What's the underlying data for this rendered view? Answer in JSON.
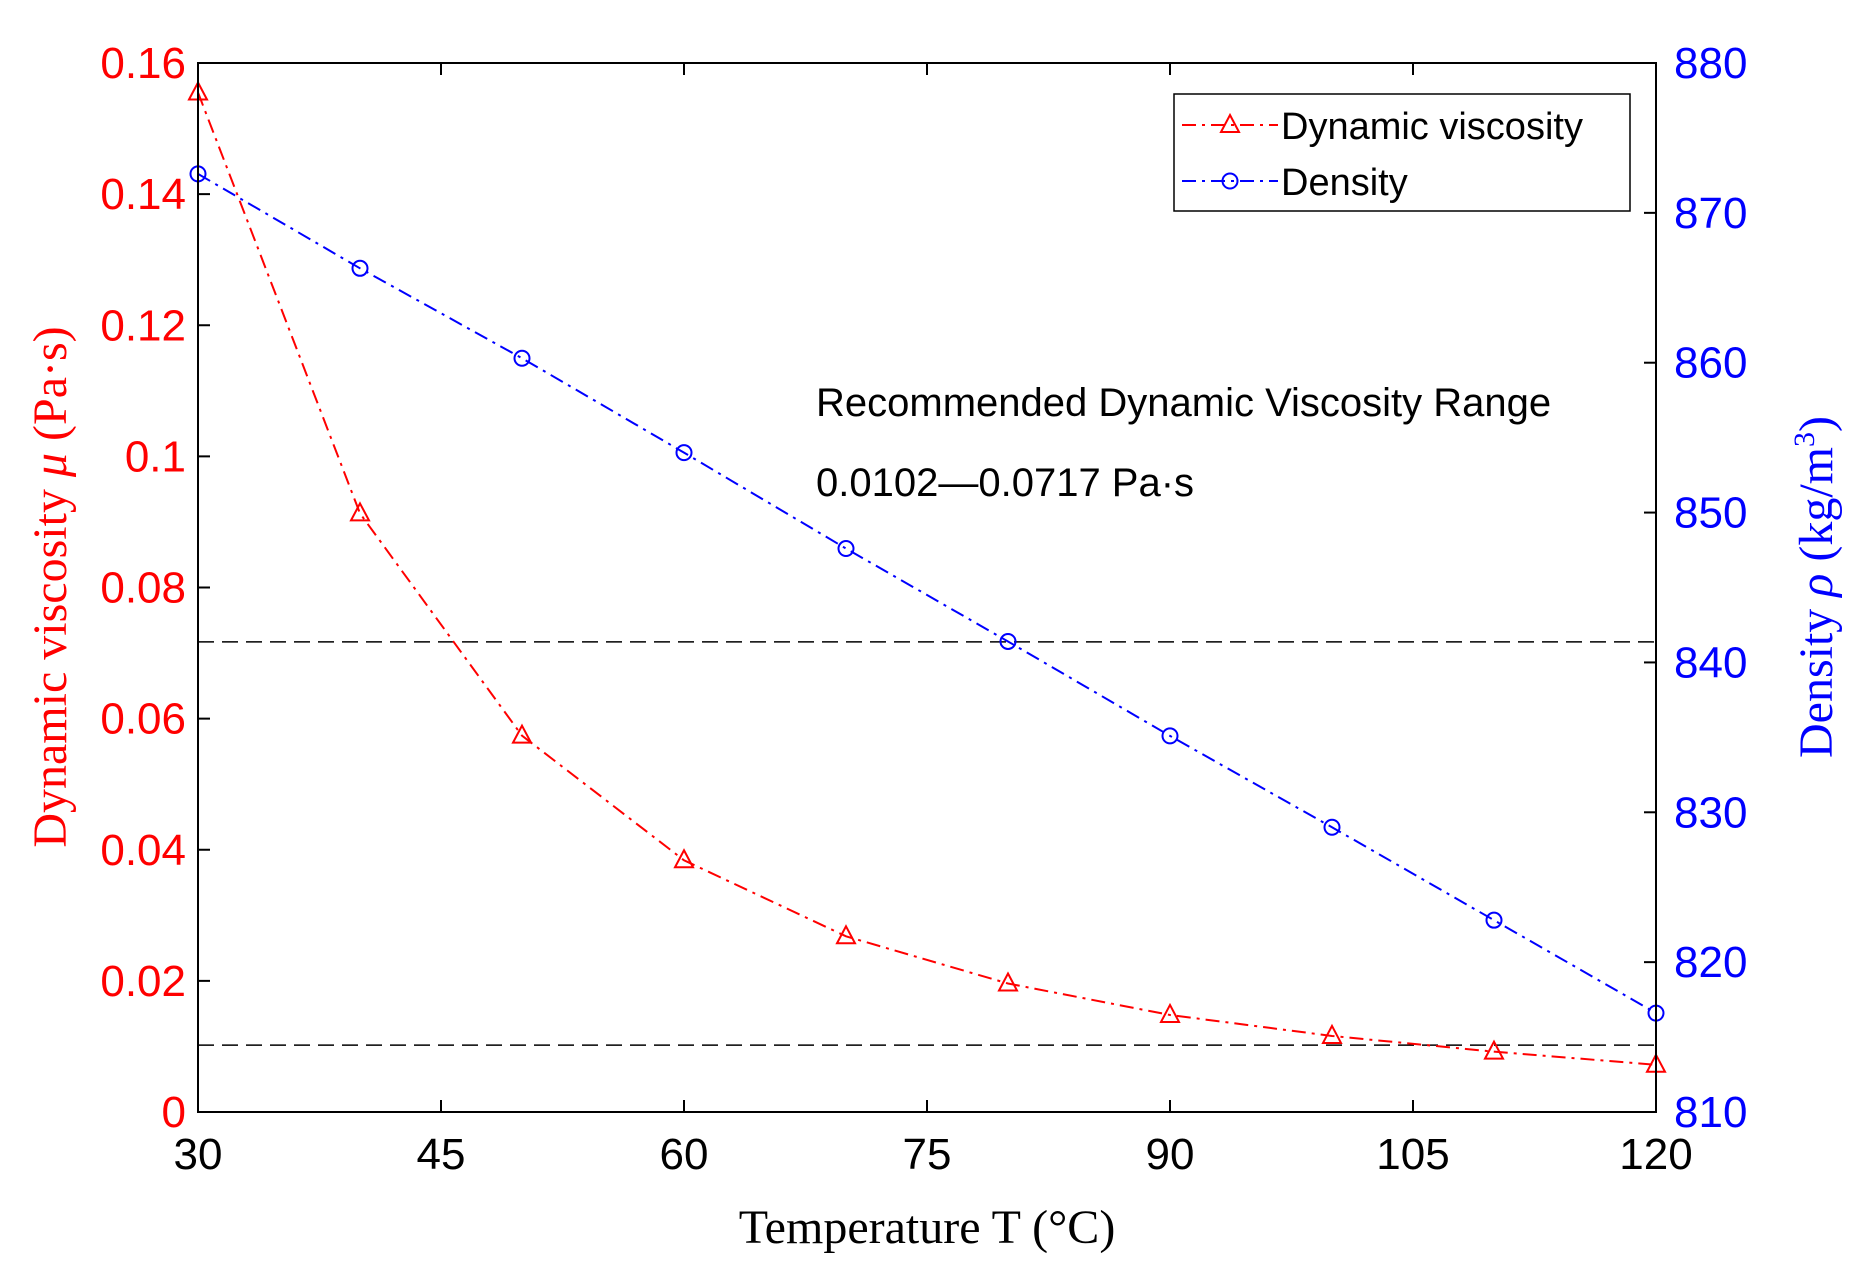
{
  "chart_data": {
    "type": "line",
    "xlabel": "Temperature T (°C)",
    "x": [
      30,
      40,
      50,
      60,
      70,
      80,
      90,
      100,
      110,
      120
    ],
    "xlim": [
      30,
      120
    ],
    "xticks": [
      30,
      45,
      60,
      75,
      90,
      105,
      120
    ],
    "ylabel_left": {
      "prefix": "Dynamic viscosity ",
      "symbol": "μ",
      "suffix": " (Pa·s)"
    },
    "ylim_left": [
      0,
      0.16
    ],
    "yticks_left": [
      "0",
      "0.02",
      "0.04",
      "0.06",
      "0.08",
      "0.1",
      "0.12",
      "0.14",
      "0.16"
    ],
    "ylabel_right": {
      "prefix": "Density ",
      "symbol": "ρ",
      "unit": " (kg/m",
      "sup": "3",
      "close": ")"
    },
    "ylim_right": [
      810,
      880
    ],
    "yticks_right": [
      "810",
      "820",
      "830",
      "840",
      "850",
      "860",
      "870",
      "880"
    ],
    "series": [
      {
        "name": "Dynamic viscosity",
        "axis": "left",
        "marker": "triangle",
        "color": "#ff0000",
        "values": [
          0.1555,
          0.0913,
          0.0574,
          0.0384,
          0.0268,
          0.0196,
          0.0148,
          0.0116,
          0.0092,
          0.0072
        ]
      },
      {
        "name": "Density",
        "axis": "right",
        "marker": "circle",
        "color": "#0000ff",
        "values": [
          872.6,
          866.3,
          860.3,
          854.0,
          847.6,
          841.4,
          835.1,
          829.0,
          822.8,
          816.6
        ]
      }
    ],
    "reference_lines": [
      {
        "axis": "left",
        "value": 0.0717
      },
      {
        "axis": "left",
        "value": 0.0102
      }
    ],
    "annotations": {
      "line1": "Recommended Dynamic Viscosity Range",
      "line2": "0.0102—0.0717 Pa·s"
    },
    "legend_position": "top-right",
    "left_axis_color": "#ff0000",
    "right_axis_color": "#0000ff"
  }
}
